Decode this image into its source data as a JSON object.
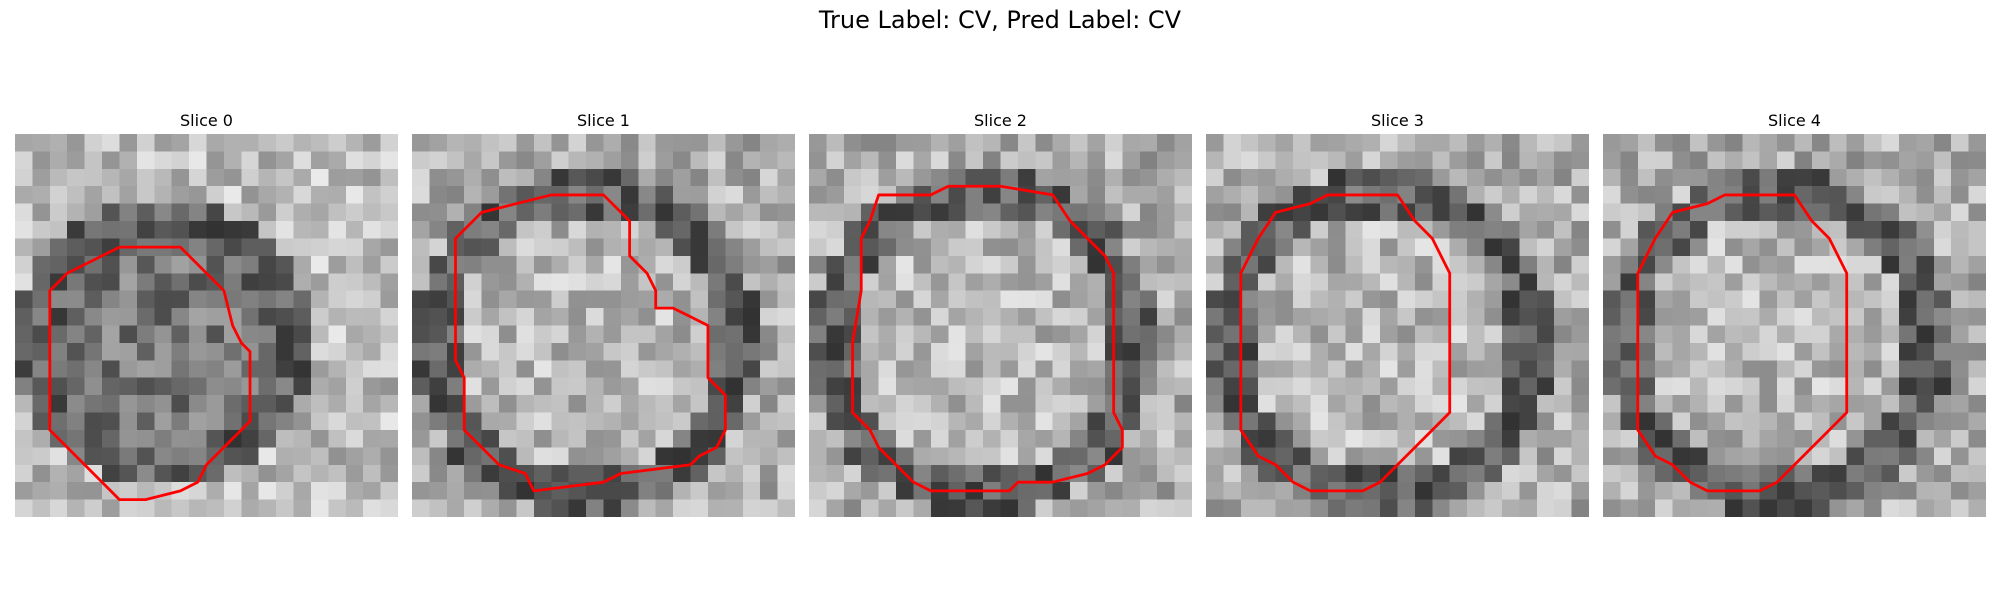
{
  "suptitle": "True Label: CV, Pred Label: CV",
  "contour_color": "#ff0000",
  "panels": [
    {
      "title": "Slice 0",
      "seed": 11,
      "outline": [
        [
          6,
          6.5
        ],
        [
          9.5,
          6.5
        ],
        [
          12,
          9
        ],
        [
          12.5,
          11
        ],
        [
          13,
          12
        ],
        [
          13.5,
          12.5
        ],
        [
          13.5,
          16.5
        ],
        [
          12,
          18
        ],
        [
          11,
          19
        ],
        [
          10.5,
          20
        ],
        [
          9.5,
          20.5
        ],
        [
          7.5,
          21
        ],
        [
          6,
          21
        ],
        [
          4,
          19
        ],
        [
          3,
          18
        ],
        [
          2,
          17
        ],
        [
          2,
          9
        ],
        [
          3,
          8
        ]
      ]
    },
    {
      "title": "Slice 1",
      "seed": 23,
      "outline": [
        [
          4,
          4.5
        ],
        [
          8,
          3.5
        ],
        [
          11,
          3.5
        ],
        [
          12.5,
          5
        ],
        [
          12.5,
          7
        ],
        [
          13.5,
          8
        ],
        [
          14,
          9
        ],
        [
          14,
          10
        ],
        [
          15,
          10
        ],
        [
          16,
          10.5
        ],
        [
          17,
          11
        ],
        [
          17,
          14
        ],
        [
          18,
          15
        ],
        [
          18,
          17
        ],
        [
          17.5,
          18
        ],
        [
          16.5,
          18.5
        ],
        [
          16,
          19
        ],
        [
          12,
          19.5
        ],
        [
          11,
          20
        ],
        [
          7,
          20.5
        ],
        [
          6.5,
          19.5
        ],
        [
          5,
          19
        ],
        [
          4,
          18
        ],
        [
          3,
          17
        ],
        [
          3,
          14
        ],
        [
          2.5,
          13
        ],
        [
          2.5,
          6
        ]
      ]
    },
    {
      "title": "Slice 2",
      "seed": 37,
      "outline": [
        [
          4,
          3.5
        ],
        [
          7,
          3.5
        ],
        [
          8,
          3
        ],
        [
          11,
          3
        ],
        [
          14,
          3.5
        ],
        [
          15,
          5
        ],
        [
          16,
          6
        ],
        [
          17,
          7
        ],
        [
          17.5,
          8
        ],
        [
          17.5,
          16
        ],
        [
          18,
          17
        ],
        [
          18,
          18
        ],
        [
          17,
          19
        ],
        [
          16,
          19.5
        ],
        [
          14,
          20
        ],
        [
          12,
          20
        ],
        [
          11.5,
          20.5
        ],
        [
          7,
          20.5
        ],
        [
          6,
          20
        ],
        [
          5,
          19
        ],
        [
          4,
          18
        ],
        [
          3.5,
          17
        ],
        [
          2.5,
          16
        ],
        [
          2.5,
          12
        ],
        [
          3,
          9
        ],
        [
          3,
          6
        ],
        [
          3.5,
          5
        ]
      ]
    },
    {
      "title": "Slice 3",
      "seed": 51,
      "outline": [
        [
          4,
          4.5
        ],
        [
          6,
          4
        ],
        [
          7,
          3.5
        ],
        [
          10,
          3.5
        ],
        [
          11,
          3.5
        ],
        [
          12,
          5
        ],
        [
          13,
          6
        ],
        [
          13.5,
          7
        ],
        [
          14,
          8
        ],
        [
          14,
          12
        ],
        [
          14,
          16
        ],
        [
          13,
          17
        ],
        [
          12,
          18
        ],
        [
          11,
          19
        ],
        [
          10,
          20
        ],
        [
          9,
          20.5
        ],
        [
          6,
          20.5
        ],
        [
          5,
          20
        ],
        [
          4,
          19
        ],
        [
          3,
          18.5
        ],
        [
          2,
          17
        ],
        [
          2,
          16
        ],
        [
          2,
          8
        ],
        [
          3,
          6
        ]
      ]
    },
    {
      "title": "Slice 4",
      "seed": 67,
      "outline": [
        [
          4,
          4.5
        ],
        [
          6,
          4
        ],
        [
          7,
          3.5
        ],
        [
          10,
          3.5
        ],
        [
          11,
          3.5
        ],
        [
          12,
          5
        ],
        [
          13,
          6
        ],
        [
          13.5,
          7
        ],
        [
          14,
          8
        ],
        [
          14,
          12
        ],
        [
          14,
          16
        ],
        [
          13,
          17
        ],
        [
          12,
          18
        ],
        [
          11,
          19
        ],
        [
          10,
          20
        ],
        [
          9,
          20.5
        ],
        [
          6,
          20.5
        ],
        [
          5,
          20
        ],
        [
          4,
          19
        ],
        [
          3,
          18.5
        ],
        [
          2,
          17
        ],
        [
          2,
          16
        ],
        [
          2,
          8
        ],
        [
          3,
          6
        ]
      ]
    }
  ]
}
